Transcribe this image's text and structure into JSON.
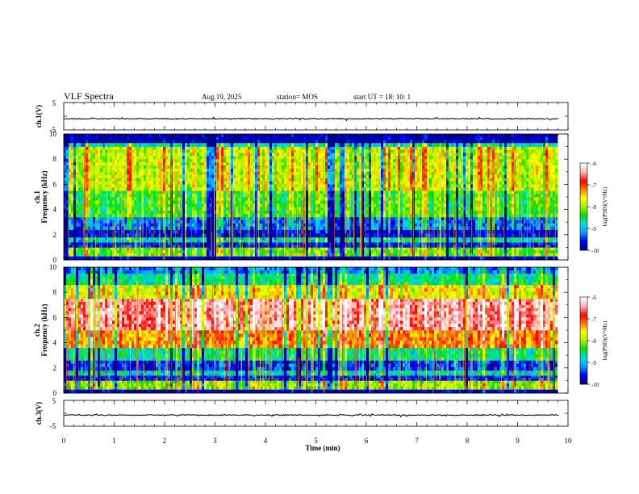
{
  "header": {
    "title": "VLF Spectra",
    "date": "Aug.19, 2025",
    "station": "station= MOS",
    "start": "start  UT  =   18: 10: 1"
  },
  "chart_data": [
    {
      "type": "line",
      "name": "ch1-waveform",
      "ylabel": "ch.1(V)",
      "ylim": [
        -5,
        5
      ],
      "yticks": [
        "5",
        "-5"
      ],
      "x_range": [
        0,
        9.82
      ],
      "baseline": -0.9
    },
    {
      "type": "heatmap",
      "name": "ch1-spectrogram",
      "ylabel": "ch.1\nFrequency  (kHz)",
      "ylim": [
        0,
        10
      ],
      "yticks": [
        0,
        2,
        4,
        6,
        8,
        10
      ],
      "band_levels": [
        {
          "from": 0.0,
          "to": 0.3,
          "level": 0.05
        },
        {
          "from": 0.3,
          "to": 1.0,
          "level": 0.45
        },
        {
          "from": 1.0,
          "to": 1.4,
          "level": 0.08
        },
        {
          "from": 1.4,
          "to": 1.8,
          "level": 0.3
        },
        {
          "from": 1.8,
          "to": 2.4,
          "level": 0.07
        },
        {
          "from": 2.4,
          "to": 3.4,
          "level": 0.18
        },
        {
          "from": 3.4,
          "to": 5.5,
          "level": 0.42
        },
        {
          "from": 5.5,
          "to": 9.0,
          "level": 0.55
        },
        {
          "from": 9.0,
          "to": 9.3,
          "level": 0.3
        },
        {
          "from": 9.3,
          "to": 10.0,
          "level": 0.02
        }
      ]
    },
    {
      "type": "heatmap",
      "name": "ch2-spectrogram",
      "ylabel": "ch.2\nFrequency  (kHz)",
      "ylim": [
        0,
        10
      ],
      "yticks": [
        0,
        2,
        4,
        6,
        8,
        10
      ],
      "band_levels": [
        {
          "from": 0.0,
          "to": 0.3,
          "level": 0.05
        },
        {
          "from": 0.3,
          "to": 1.0,
          "level": 0.5
        },
        {
          "from": 1.0,
          "to": 1.4,
          "level": 0.1
        },
        {
          "from": 1.4,
          "to": 1.8,
          "level": 0.3
        },
        {
          "from": 1.8,
          "to": 2.6,
          "level": 0.12
        },
        {
          "from": 2.6,
          "to": 3.6,
          "level": 0.35
        },
        {
          "from": 3.6,
          "to": 5.0,
          "level": 0.7
        },
        {
          "from": 5.0,
          "to": 7.5,
          "level": 0.9
        },
        {
          "from": 7.5,
          "to": 8.6,
          "level": 0.6
        },
        {
          "from": 8.6,
          "to": 9.5,
          "level": 0.35
        },
        {
          "from": 9.5,
          "to": 10.0,
          "level": 0.2
        }
      ]
    },
    {
      "type": "line",
      "name": "ch3-waveform",
      "ylabel": "ch.3(V)",
      "ylim": [
        -5,
        5
      ],
      "yticks": [
        "5",
        "-5"
      ],
      "x_range": [
        0,
        9.82
      ],
      "baseline": -0.7
    }
  ],
  "xaxis": {
    "label": "Time  (min)",
    "range": [
      0,
      10
    ],
    "ticks": [
      0,
      1,
      2,
      3,
      4,
      5,
      6,
      7,
      8,
      9,
      10
    ]
  },
  "colorbar": {
    "label": "log(PSD)(V²/Hz)",
    "range": [
      -10,
      -6
    ],
    "ticks": [
      -6,
      -7,
      -8,
      -9,
      -10
    ],
    "colors": [
      "#00008b",
      "#0000ff",
      "#00a0ff",
      "#00e0e0",
      "#00e000",
      "#a0f000",
      "#ffff00",
      "#ff8000",
      "#ff0000",
      "#ffb0b0",
      "#ffffff"
    ]
  }
}
